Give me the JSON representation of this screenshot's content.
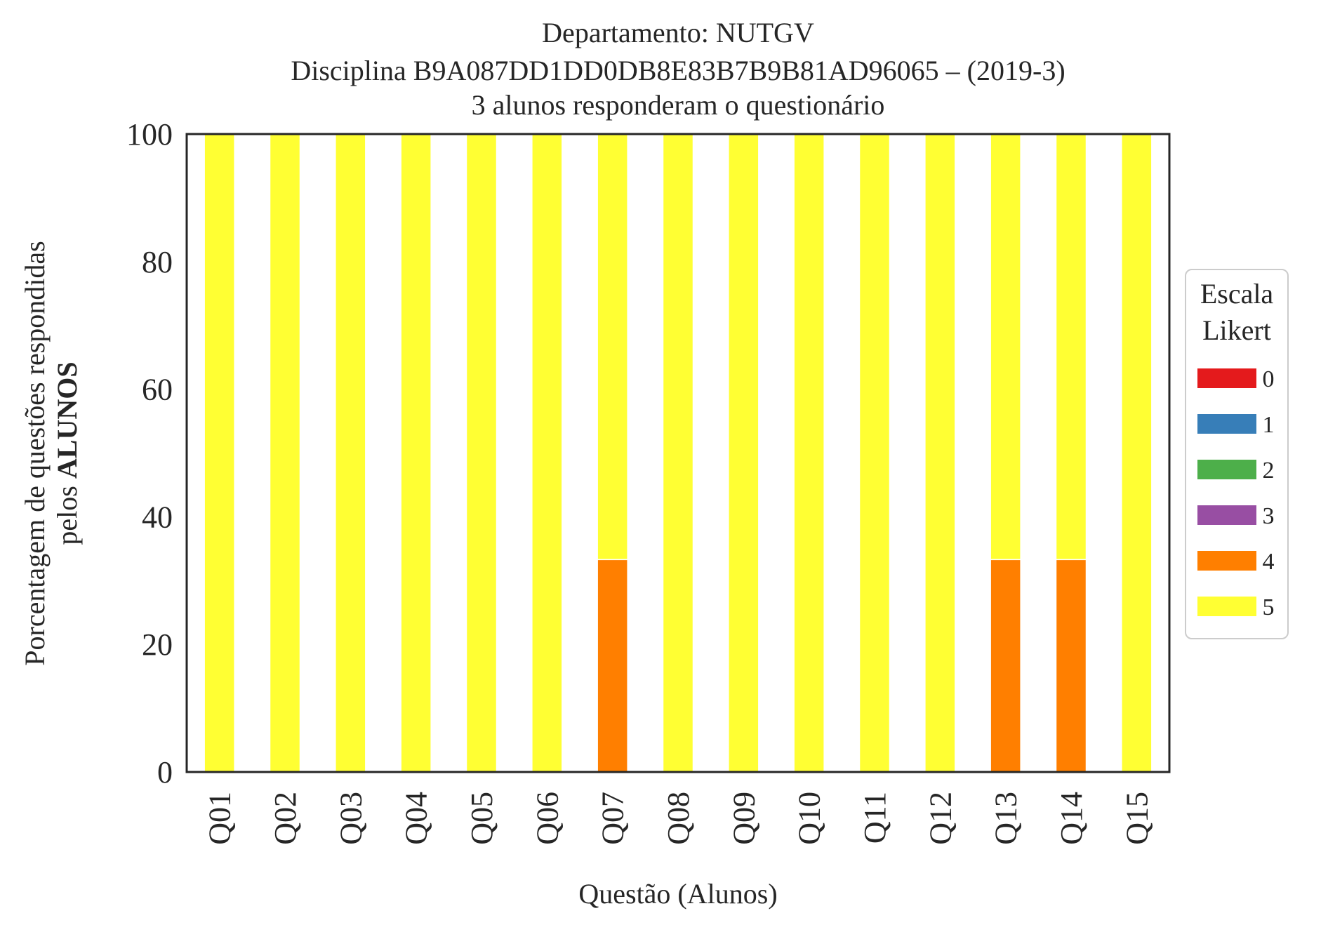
{
  "chart_data": {
    "type": "bar",
    "stacked": true,
    "title_lines": [
      "Departamento: NUTGV",
      "Disciplina B9A087DD1DD0DB8E83B7B9B81AD96065 – (2019-3)",
      "3 alunos responderam o questionário"
    ],
    "xlabel": "Questão (Alunos)",
    "ylabel_line1": "Porcentagem de questões respondidas",
    "ylabel_line2_prefix": "pelos",
    "ylabel_line2_bold": "ALUNOS",
    "ylim": [
      0,
      100
    ],
    "yticks": [
      "0",
      "20",
      "40",
      "60",
      "80",
      "100"
    ],
    "grid": false,
    "legend_position": "right",
    "legend_title_lines": [
      "Escala",
      "Likert"
    ],
    "categories": [
      "Q01",
      "Q02",
      "Q03",
      "Q04",
      "Q05",
      "Q06",
      "Q07",
      "Q08",
      "Q09",
      "Q10",
      "Q11",
      "Q12",
      "Q13",
      "Q14",
      "Q15"
    ],
    "series": [
      {
        "name": "0",
        "color": "#e41a1c",
        "values": [
          0,
          0,
          0,
          0,
          0,
          0,
          0,
          0,
          0,
          0,
          0,
          0,
          0,
          0,
          0
        ]
      },
      {
        "name": "1",
        "color": "#377eb8",
        "values": [
          0,
          0,
          0,
          0,
          0,
          0,
          0,
          0,
          0,
          0,
          0,
          0,
          0,
          0,
          0
        ]
      },
      {
        "name": "2",
        "color": "#4daf4a",
        "values": [
          0,
          0,
          0,
          0,
          0,
          0,
          0,
          0,
          0,
          0,
          0,
          0,
          0,
          0,
          0
        ]
      },
      {
        "name": "3",
        "color": "#984ea3",
        "values": [
          0,
          0,
          0,
          0,
          0,
          0,
          0,
          0,
          0,
          0,
          0,
          0,
          0,
          0,
          0
        ]
      },
      {
        "name": "4",
        "color": "#ff7f00",
        "values": [
          0,
          0,
          0,
          0,
          0,
          0,
          33.3,
          0,
          0,
          0,
          0,
          0,
          33.3,
          33.3,
          0
        ]
      },
      {
        "name": "5",
        "color": "#ffff33",
        "values": [
          100,
          100,
          100,
          100,
          100,
          100,
          66.7,
          100,
          100,
          100,
          100,
          100,
          66.7,
          66.7,
          100
        ]
      }
    ]
  }
}
